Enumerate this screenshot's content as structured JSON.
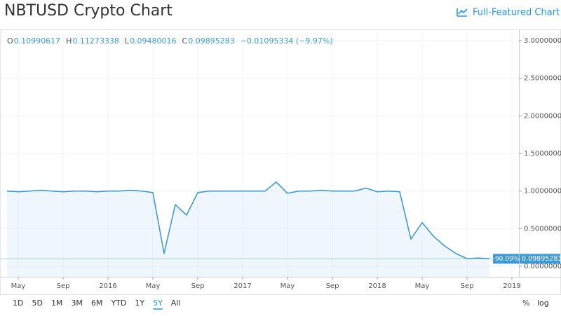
{
  "header": {
    "title": "NBTUSD Crypto Chart",
    "link": "Full-Featured Chart"
  },
  "chart_data": {
    "type": "line",
    "ohlc": {
      "o_label": "O",
      "o": "0.10990617",
      "h_label": "H",
      "h": "0.11273338",
      "l_label": "L",
      "l": "0.09480016",
      "c_label": "C",
      "c": "0.09895283",
      "change": "−0.01095334 (−9.97%)"
    },
    "x": [
      "2015-04",
      "2015-05",
      "2015-06",
      "2015-07",
      "2015-08",
      "2015-09",
      "2015-10",
      "2015-11",
      "2015-12",
      "2016-01",
      "2016-02",
      "2016-03",
      "2016-04",
      "2016-05",
      "2016-06",
      "2016-07",
      "2016-08",
      "2016-09",
      "2016-10",
      "2016-11",
      "2016-12",
      "2017-01",
      "2017-02",
      "2017-03",
      "2017-04",
      "2017-05",
      "2017-06",
      "2017-07",
      "2017-08",
      "2017-09",
      "2017-10",
      "2017-11",
      "2017-12",
      "2018-01",
      "2018-02",
      "2018-03",
      "2018-04",
      "2018-05",
      "2018-06",
      "2018-07",
      "2018-08",
      "2018-09",
      "2018-10",
      "2018-11"
    ],
    "values": [
      1.0,
      0.99,
      1.0,
      1.01,
      1.0,
      0.99,
      1.0,
      1.0,
      0.99,
      1.0,
      1.0,
      1.01,
      1.0,
      0.98,
      0.17,
      0.82,
      0.68,
      0.98,
      1.0,
      1.0,
      1.0,
      1.0,
      1.0,
      1.0,
      1.12,
      0.97,
      1.0,
      1.0,
      1.01,
      1.0,
      1.0,
      1.0,
      1.04,
      0.99,
      1.0,
      0.99,
      0.36,
      0.58,
      0.4,
      0.27,
      0.17,
      0.1,
      0.11,
      0.09895283
    ],
    "color": "#3d9ad6",
    "change_badge": "-90.09%",
    "ylim": [
      -0.14,
      3.14
    ],
    "yticks": [
      {
        "value": 0,
        "label": "0.00000000"
      },
      {
        "value": 0.5,
        "label": "0.50000000"
      },
      {
        "value": 1,
        "label": "1.00000000"
      },
      {
        "value": 1.5,
        "label": "1.50000000"
      },
      {
        "value": 2,
        "label": "2.00000000"
      },
      {
        "value": 2.5,
        "label": "2.50000000"
      },
      {
        "value": 3,
        "label": "3.00000000"
      }
    ],
    "xticks": [
      {
        "value": "2015-05",
        "label": "May"
      },
      {
        "value": "2015-09",
        "label": "Sep"
      },
      {
        "value": "2016-01",
        "label": "2016"
      },
      {
        "value": "2016-05",
        "label": "May"
      },
      {
        "value": "2016-09",
        "label": "Sep"
      },
      {
        "value": "2017-01",
        "label": "2017"
      },
      {
        "value": "2017-05",
        "label": "May"
      },
      {
        "value": "2017-09",
        "label": "Sep"
      },
      {
        "value": "2018-01",
        "label": "2018"
      },
      {
        "value": "2018-05",
        "label": "May"
      },
      {
        "value": "2018-09",
        "label": "Sep"
      },
      {
        "value": "2019-01",
        "label": "2019"
      }
    ],
    "grid": true,
    "ranges": [
      "1D",
      "5D",
      "1M",
      "3M",
      "6M",
      "YTD",
      "1Y",
      "5Y",
      "All"
    ],
    "active_range": 7,
    "scale_buttons": [
      "%",
      "log"
    ]
  }
}
